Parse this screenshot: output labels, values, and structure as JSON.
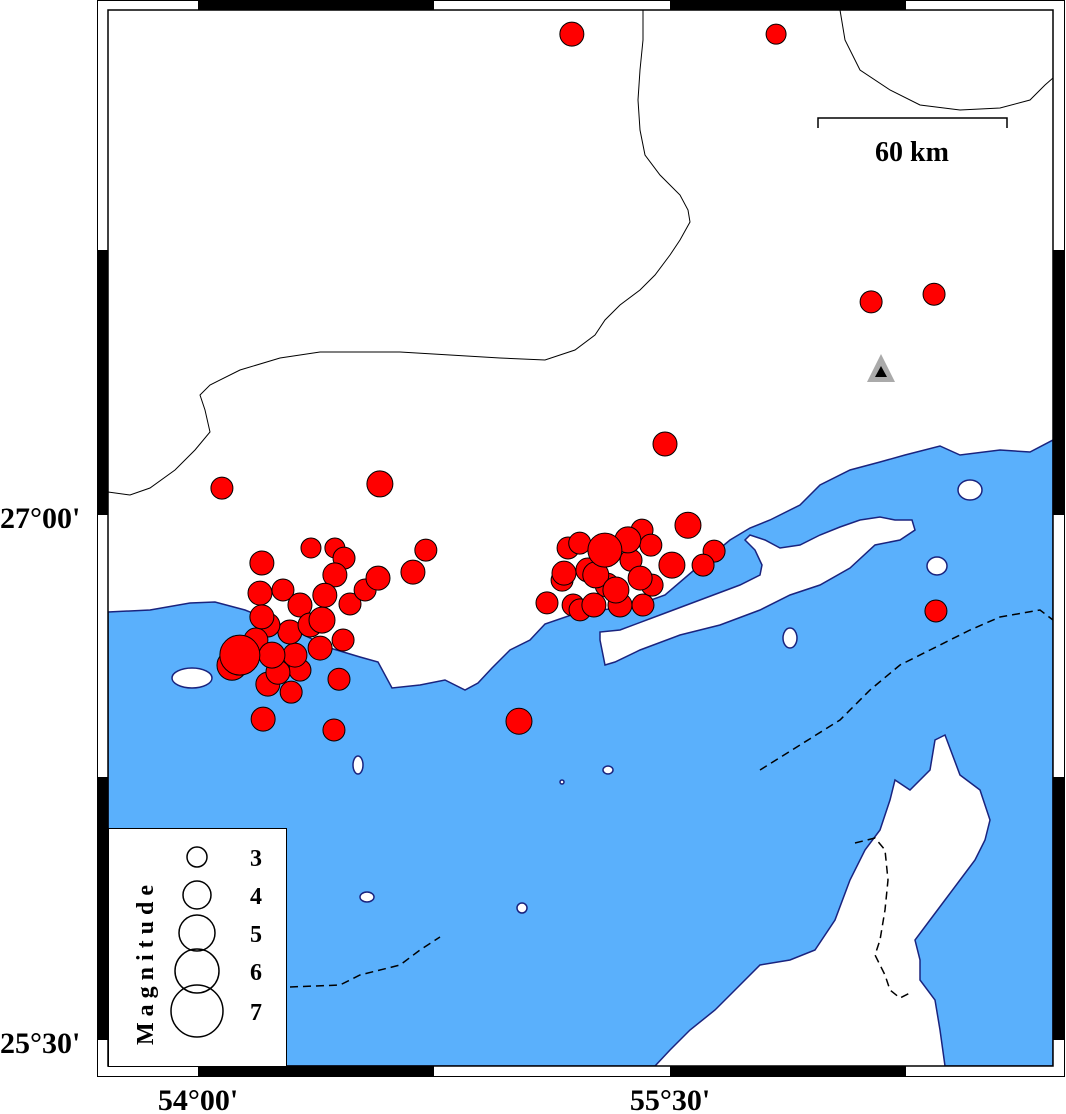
{
  "map": {
    "extent": {
      "lon": [
        53.714,
        56.717
      ],
      "lat": [
        25.426,
        28.443
      ]
    },
    "sea_color": "#5ab0fc",
    "land_color": "#ffffff",
    "coast_color": "#1a237e",
    "event_color": "#ff0000",
    "x_ticks": [
      {
        "value": 54.0,
        "label": "54°00'"
      },
      {
        "value": 55.5,
        "label": "55°30'"
      }
    ],
    "y_ticks": [
      {
        "value": 27.0,
        "label": "27°00'"
      },
      {
        "value": 25.5,
        "label": "25°30'"
      }
    ],
    "scale_bar": {
      "label": "60 km",
      "km": 60
    },
    "station": {
      "lon": 56.172,
      "lat": 27.4,
      "icon": "triangle-volcano-icon"
    }
  },
  "legend": {
    "title": "Magnitude",
    "entries": [
      {
        "mag": 3,
        "label": "3"
      },
      {
        "mag": 4,
        "label": "4"
      },
      {
        "mag": 5,
        "label": "5"
      },
      {
        "mag": 6,
        "label": "6"
      },
      {
        "mag": 7,
        "label": "7"
      }
    ]
  },
  "events": [
    {
      "lon": 55.188,
      "lat": 28.374,
      "mag": 3.5
    },
    {
      "lon": 55.837,
      "lat": 28.374,
      "mag": 3.0
    },
    {
      "lon": 56.139,
      "lat": 27.609,
      "mag": 3.25
    },
    {
      "lon": 56.339,
      "lat": 27.631,
      "mag": 3.25
    },
    {
      "lon": 55.484,
      "lat": 27.203,
      "mag": 3.5
    },
    {
      "lon": 54.076,
      "lat": 27.077,
      "mag": 3.25
    },
    {
      "lon": 54.578,
      "lat": 27.089,
      "mag": 3.75
    },
    {
      "lon": 55.557,
      "lat": 26.971,
      "mag": 3.75
    },
    {
      "lon": 55.64,
      "lat": 26.897,
      "mag": 3.25
    },
    {
      "lon": 56.345,
      "lat": 26.726,
      "mag": 3.25
    },
    {
      "lon": 55.02,
      "lat": 26.411,
      "mag": 3.75
    },
    {
      "lon": 54.207,
      "lat": 26.417,
      "mag": 3.5
    },
    {
      "lon": 54.432,
      "lat": 26.386,
      "mag": 3.25
    },
    {
      "lon": 54.448,
      "lat": 26.531,
      "mag": 3.25
    },
    {
      "lon": 54.724,
      "lat": 26.9,
      "mag": 3.25
    },
    {
      "lon": 54.683,
      "lat": 26.837,
      "mag": 3.5
    },
    {
      "lon": 54.572,
      "lat": 26.82,
      "mag": 3.5
    },
    {
      "lon": 54.203,
      "lat": 26.863,
      "mag": 3.5
    },
    {
      "lon": 54.197,
      "lat": 26.777,
      "mag": 3.5
    },
    {
      "lon": 54.359,
      "lat": 26.906,
      "mag": 3.0
    },
    {
      "lon": 54.435,
      "lat": 26.906,
      "mag": 3.0
    },
    {
      "lon": 54.464,
      "lat": 26.877,
      "mag": 3.25
    },
    {
      "lon": 54.108,
      "lat": 26.571,
      "mag": 4.25
    },
    {
      "lon": 54.222,
      "lat": 26.517,
      "mag": 3.5
    },
    {
      "lon": 54.296,
      "lat": 26.494,
      "mag": 3.25
    },
    {
      "lon": 54.308,
      "lat": 26.6,
      "mag": 3.5
    },
    {
      "lon": 54.292,
      "lat": 26.666,
      "mag": 3.5
    },
    {
      "lon": 54.394,
      "lat": 26.7,
      "mag": 3.75
    },
    {
      "lon": 54.483,
      "lat": 26.746,
      "mag": 3.25
    },
    {
      "lon": 54.461,
      "lat": 26.643,
      "mag": 3.25
    },
    {
      "lon": 54.388,
      "lat": 26.62,
      "mag": 3.5
    },
    {
      "lon": 54.27,
      "lat": 26.786,
      "mag": 3.25
    },
    {
      "lon": 54.324,
      "lat": 26.743,
      "mag": 3.5
    },
    {
      "lon": 54.222,
      "lat": 26.686,
      "mag": 3.5
    },
    {
      "lon": 54.235,
      "lat": 26.6,
      "mag": 3.75
    },
    {
      "lon": 54.435,
      "lat": 26.829,
      "mag": 3.5
    },
    {
      "lon": 54.403,
      "lat": 26.771,
      "mag": 3.5
    },
    {
      "lon": 54.531,
      "lat": 26.786,
      "mag": 3.25
    },
    {
      "lon": 54.356,
      "lat": 26.686,
      "mag": 3.5
    },
    {
      "lon": 54.184,
      "lat": 26.643,
      "mag": 3.5
    },
    {
      "lon": 54.203,
      "lat": 26.709,
      "mag": 3.5
    },
    {
      "lon": 54.254,
      "lat": 26.551,
      "mag": 3.5
    },
    {
      "lon": 54.324,
      "lat": 26.557,
      "mag": 3.25
    },
    {
      "lon": 54.133,
      "lat": 26.6,
      "mag": 5.5
    },
    {
      "lon": 55.176,
      "lat": 26.906,
      "mag": 3.25
    },
    {
      "lon": 55.213,
      "lat": 26.92,
      "mag": 3.25
    },
    {
      "lon": 55.163,
      "lat": 26.834,
      "mag": 3.5
    },
    {
      "lon": 55.157,
      "lat": 26.814,
      "mag": 3.25
    },
    {
      "lon": 55.109,
      "lat": 26.749,
      "mag": 3.25
    },
    {
      "lon": 55.192,
      "lat": 26.743,
      "mag": 3.25
    },
    {
      "lon": 55.214,
      "lat": 26.729,
      "mag": 3.25
    },
    {
      "lon": 55.258,
      "lat": 26.743,
      "mag": 3.5
    },
    {
      "lon": 55.264,
      "lat": 26.829,
      "mag": 3.75
    },
    {
      "lon": 55.341,
      "lat": 26.743,
      "mag": 3.5
    },
    {
      "lon": 55.414,
      "lat": 26.743,
      "mag": 3.25
    },
    {
      "lon": 55.443,
      "lat": 26.8,
      "mag": 3.25
    },
    {
      "lon": 55.405,
      "lat": 26.82,
      "mag": 3.5
    },
    {
      "lon": 55.366,
      "lat": 26.929,
      "mag": 3.75
    },
    {
      "lon": 55.411,
      "lat": 26.957,
      "mag": 3.25
    },
    {
      "lon": 55.439,
      "lat": 26.914,
      "mag": 3.25
    },
    {
      "lon": 55.506,
      "lat": 26.857,
      "mag": 3.75
    },
    {
      "lon": 55.605,
      "lat": 26.857,
      "mag": 3.25
    },
    {
      "lon": 55.3,
      "lat": 26.8,
      "mag": 3.5
    },
    {
      "lon": 55.376,
      "lat": 26.871,
      "mag": 3.25
    },
    {
      "lon": 55.239,
      "lat": 26.843,
      "mag": 3.5
    },
    {
      "lon": 55.293,
      "lat": 26.9,
      "mag": 4.75
    },
    {
      "lon": 55.328,
      "lat": 26.786,
      "mag": 3.75
    }
  ]
}
